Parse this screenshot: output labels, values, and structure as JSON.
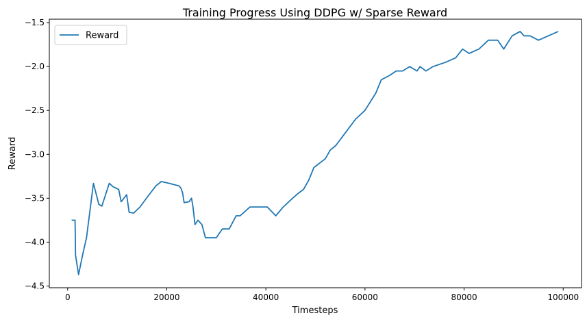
{
  "chart_data": {
    "type": "line",
    "title": "Training Progress Using DDPG w/ Sparse Reward",
    "xlabel": "Timesteps",
    "ylabel": "Reward",
    "xlim": [
      -3700,
      103700
    ],
    "ylim": [
      -4.52,
      -1.46
    ],
    "xticks": [
      0,
      20000,
      40000,
      60000,
      80000,
      100000
    ],
    "xtick_labels": [
      "0",
      "20000",
      "40000",
      "60000",
      "80000",
      "100000"
    ],
    "yticks": [
      -4.5,
      -4.0,
      -3.5,
      -3.0,
      -2.5,
      -2.0,
      -1.5
    ],
    "ytick_labels": [
      "−4.5",
      "−4.0",
      "−3.5",
      "−3.0",
      "−2.5",
      "−2.0",
      "−1.5"
    ],
    "grid": false,
    "legend_position": "upper-left",
    "series": [
      {
        "name": "Reward",
        "color": "#1f77b4",
        "x": [
          800,
          1500,
          1600,
          2200,
          3000,
          3800,
          5200,
          6300,
          6900,
          8400,
          9200,
          10300,
          10800,
          11900,
          12400,
          13300,
          14600,
          16300,
          17800,
          18900,
          20500,
          22500,
          22900,
          23200,
          23500,
          24500,
          25000,
          25300,
          25700,
          26300,
          27100,
          27800,
          28700,
          30000,
          31200,
          32600,
          34000,
          34800,
          36800,
          38500,
          40300,
          42000,
          43500,
          45400,
          46400,
          47600,
          48600,
          49700,
          52000,
          53000,
          54100,
          56100,
          58100,
          60000,
          62200,
          63300,
          65000,
          66300,
          67600,
          69000,
          70500,
          71100,
          72300,
          73700,
          76300,
          78300,
          79700,
          81000,
          83000,
          84900,
          86800,
          88000,
          89700,
          91300,
          92100,
          93300,
          95000,
          99000
        ],
        "y": [
          -3.75,
          -3.75,
          -4.15,
          -4.37,
          -4.15,
          -3.95,
          -3.33,
          -3.57,
          -3.59,
          -3.33,
          -3.37,
          -3.4,
          -3.54,
          -3.46,
          -3.66,
          -3.67,
          -3.6,
          -3.47,
          -3.36,
          -3.31,
          -3.33,
          -3.36,
          -3.39,
          -3.44,
          -3.55,
          -3.54,
          -3.5,
          -3.6,
          -3.8,
          -3.75,
          -3.8,
          -3.95,
          -3.95,
          -3.95,
          -3.85,
          -3.85,
          -3.7,
          -3.7,
          -3.6,
          -3.6,
          -3.6,
          -3.7,
          -3.6,
          -3.5,
          -3.45,
          -3.4,
          -3.3,
          -3.15,
          -3.05,
          -2.95,
          -2.9,
          -2.75,
          -2.6,
          -2.5,
          -2.3,
          -2.15,
          -2.1,
          -2.05,
          -2.05,
          -2.0,
          -2.05,
          -2.0,
          -2.05,
          -2.0,
          -1.95,
          -1.9,
          -1.8,
          -1.85,
          -1.8,
          -1.7,
          -1.7,
          -1.8,
          -1.65,
          -1.6,
          -1.65,
          -1.65,
          -1.7,
          -1.6
        ]
      }
    ]
  }
}
